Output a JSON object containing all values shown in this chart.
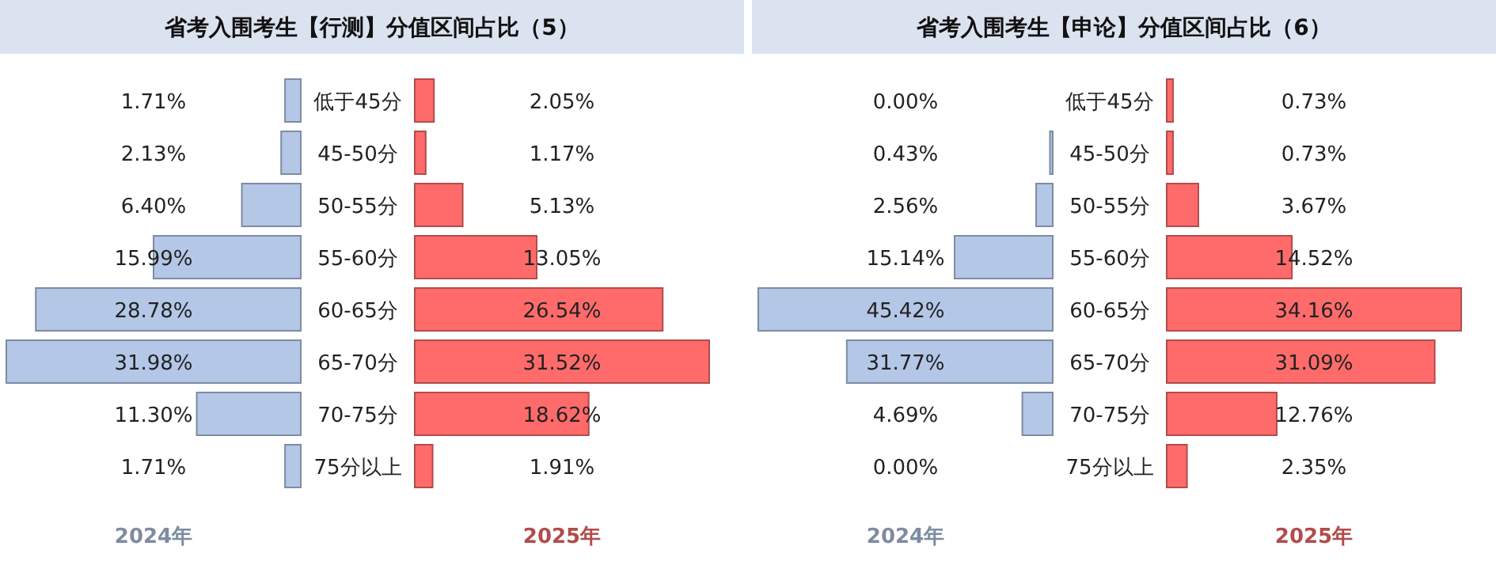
{
  "chart_data": [
    {
      "type": "bar",
      "orientation": "horizontal",
      "title": "省考入围考生【行测】分值区间占比（5）",
      "categories": [
        "低于45分",
        "45-50分",
        "50-55分",
        "55-60分",
        "60-65分",
        "65-70分",
        "70-75分",
        "75分以上"
      ],
      "series": [
        {
          "name": "2024年",
          "color": "#b4c7e7",
          "values": [
            1.71,
            2.13,
            6.4,
            15.99,
            28.78,
            31.98,
            11.3,
            1.71
          ],
          "value_labels": [
            "1.71%",
            "2.13%",
            "6.40%",
            "15.99%",
            "28.78%",
            "31.98%",
            "11.30%",
            "1.71%"
          ]
        }
      ]
    },
    {
      "type": "bar",
      "orientation": "horizontal",
      "categories": [
        null,
        null,
        null,
        null,
        null,
        null,
        null,
        null
      ],
      "series": [
        {
          "name": "2025年",
          "color": "#ff6b6b",
          "values": [
            2.05,
            1.17,
            5.13,
            13.05,
            26.54,
            31.52,
            18.62,
            1.91
          ],
          "value_labels": [
            "2.05%",
            "1.17%",
            "5.13%",
            "13.05%",
            "26.54%",
            "31.52%",
            "18.62%",
            "1.91%"
          ]
        }
      ]
    },
    {
      "type": "bar",
      "orientation": "horizontal",
      "title": "省考入围考生【申论】分值区间占比（6）",
      "categories": [
        "低于45分",
        "45-50分",
        "50-55分",
        "55-60分",
        "60-65分",
        "65-70分",
        "70-75分",
        "75分以上"
      ],
      "series": [
        {
          "name": "2024年",
          "color": "#b4c7e7",
          "values": [
            0.0,
            0.43,
            2.56,
            15.14,
            45.42,
            31.77,
            4.69,
            0.0
          ],
          "value_labels": [
            "0.00%",
            "0.43%",
            "2.56%",
            "15.14%",
            "45.42%",
            "31.77%",
            "4.69%",
            "0.00%"
          ]
        }
      ]
    },
    {
      "type": "bar",
      "orientation": "horizontal",
      "categories": [
        null,
        null,
        null,
        null,
        null,
        null,
        null,
        null
      ],
      "series": [
        {
          "name": "2025年",
          "color": "#ff6b6b",
          "values": [
            0.73,
            0.73,
            3.67,
            14.52,
            34.16,
            31.09,
            12.76,
            2.35
          ],
          "value_labels": [
            "0.73%",
            "0.73%",
            "3.67%",
            "14.52%",
            "34.16%",
            "31.09%",
            "12.76%",
            "2.35%"
          ]
        }
      ]
    }
  ]
}
